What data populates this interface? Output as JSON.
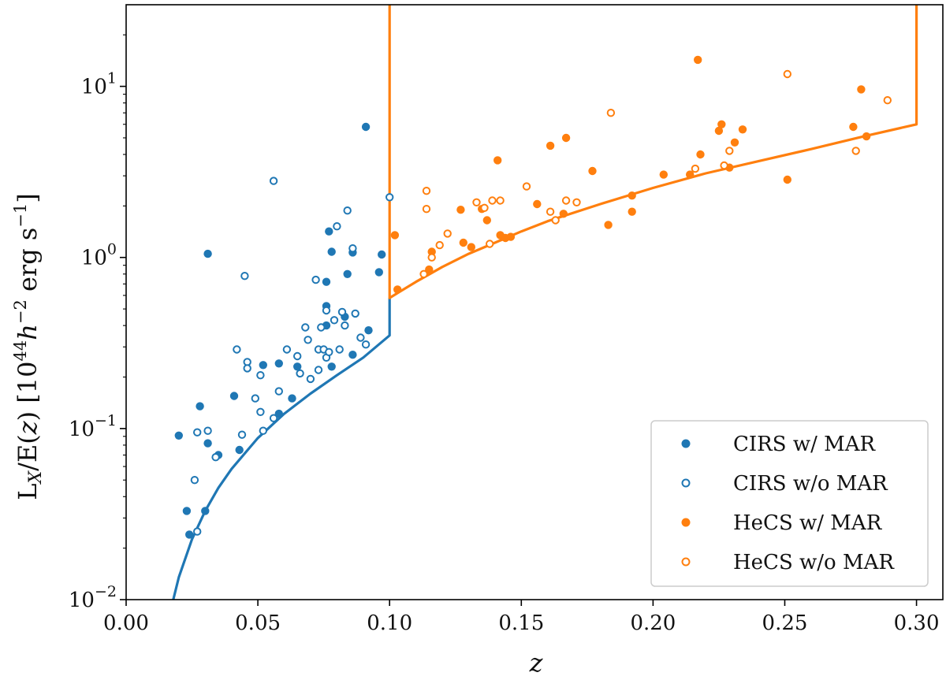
{
  "chart_data": {
    "type": "scatter",
    "title": "",
    "xlabel": "z",
    "ylabel_parts": {
      "L": "L",
      "X": "X",
      "mid": "/E(",
      "z": "z",
      "close": ") [10",
      "exp44": "44",
      "h": "h",
      "expm2": "−2",
      "erg": " erg s",
      "expm1": "−1",
      "end": "]"
    },
    "xlim": [
      0.0,
      0.31
    ],
    "ylim": [
      0.01,
      30
    ],
    "yscale": "log",
    "x_ticks": [
      0.0,
      0.05,
      0.1,
      0.15,
      0.2,
      0.25,
      0.3
    ],
    "x_tick_labels": [
      "0.00",
      "0.05",
      "0.10",
      "0.15",
      "0.20",
      "0.25",
      "0.30"
    ],
    "y_ticks": [
      0.01,
      0.1,
      1,
      10
    ],
    "y_tick_labels": [
      {
        "base": "10",
        "exp": "−2"
      },
      {
        "base": "10",
        "exp": "−1"
      },
      {
        "base": "10",
        "exp": "0"
      },
      {
        "base": "10",
        "exp": "1"
      }
    ],
    "colors": {
      "cirs": "#1f77b4",
      "hecs": "#ff7f0e"
    },
    "legend": {
      "position": "lower-right",
      "entries": [
        {
          "label": "CIRS w/ MAR",
          "color": "#1f77b4",
          "filled": true
        },
        {
          "label": "CIRS w/o MAR",
          "color": "#1f77b4",
          "filled": false
        },
        {
          "label": "HeCS w/ MAR",
          "color": "#ff7f0e",
          "filled": true
        },
        {
          "label": "HeCS w/o MAR",
          "color": "#ff7f0e",
          "filled": false
        }
      ]
    },
    "curves": [
      {
        "name": "CIRS limit",
        "color": "#1f77b4",
        "points": [
          [
            0.0179,
            0.01
          ],
          [
            0.02,
            0.0135
          ],
          [
            0.025,
            0.0225
          ],
          [
            0.03,
            0.033
          ],
          [
            0.035,
            0.045
          ],
          [
            0.04,
            0.058
          ],
          [
            0.05,
            0.088
          ],
          [
            0.06,
            0.122
          ],
          [
            0.07,
            0.16
          ],
          [
            0.08,
            0.205
          ],
          [
            0.09,
            0.26
          ],
          [
            0.1,
            0.35
          ],
          [
            0.1,
            0.58
          ]
        ]
      },
      {
        "name": "HeCS limit",
        "color": "#ff7f0e",
        "points": [
          [
            0.1,
            30
          ],
          [
            0.1,
            0.58
          ],
          [
            0.11,
            0.72
          ],
          [
            0.12,
            0.88
          ],
          [
            0.13,
            1.05
          ],
          [
            0.14,
            1.22
          ],
          [
            0.15,
            1.42
          ],
          [
            0.16,
            1.63
          ],
          [
            0.18,
            2.05
          ],
          [
            0.2,
            2.55
          ],
          [
            0.22,
            3.1
          ],
          [
            0.24,
            3.65
          ],
          [
            0.26,
            4.3
          ],
          [
            0.28,
            5.1
          ],
          [
            0.3,
            6.0
          ],
          [
            0.3,
            30
          ]
        ]
      }
    ],
    "series": [
      {
        "name": "CIRS w/ MAR",
        "color": "#1f77b4",
        "filled": true,
        "points": [
          [
            0.02,
            0.091
          ],
          [
            0.023,
            0.033
          ],
          [
            0.024,
            0.024
          ],
          [
            0.028,
            0.135
          ],
          [
            0.03,
            0.033
          ],
          [
            0.031,
            1.05
          ],
          [
            0.031,
            0.082
          ],
          [
            0.035,
            0.07
          ],
          [
            0.041,
            0.155
          ],
          [
            0.043,
            0.075
          ],
          [
            0.052,
            0.235
          ],
          [
            0.058,
            0.24
          ],
          [
            0.058,
            0.122
          ],
          [
            0.063,
            0.15
          ],
          [
            0.065,
            0.23
          ],
          [
            0.076,
            0.52
          ],
          [
            0.076,
            0.72
          ],
          [
            0.076,
            0.4
          ],
          [
            0.077,
            1.42
          ],
          [
            0.078,
            1.08
          ],
          [
            0.078,
            0.23
          ],
          [
            0.084,
            0.8
          ],
          [
            0.086,
            1.07
          ],
          [
            0.086,
            0.27
          ],
          [
            0.083,
            0.45
          ],
          [
            0.091,
            5.8
          ],
          [
            0.092,
            0.375
          ],
          [
            0.096,
            0.82
          ],
          [
            0.097,
            1.04
          ]
        ]
      },
      {
        "name": "CIRS w/o MAR",
        "color": "#1f77b4",
        "filled": false,
        "points": [
          [
            0.026,
            0.05
          ],
          [
            0.027,
            0.025
          ],
          [
            0.027,
            0.095
          ],
          [
            0.031,
            0.097
          ],
          [
            0.034,
            0.068
          ],
          [
            0.042,
            0.29
          ],
          [
            0.044,
            0.092
          ],
          [
            0.045,
            0.78
          ],
          [
            0.046,
            0.245
          ],
          [
            0.046,
            0.225
          ],
          [
            0.049,
            0.15
          ],
          [
            0.051,
            0.205
          ],
          [
            0.051,
            0.125
          ],
          [
            0.052,
            0.097
          ],
          [
            0.056,
            2.8
          ],
          [
            0.056,
            0.115
          ],
          [
            0.058,
            0.165
          ],
          [
            0.061,
            0.29
          ],
          [
            0.065,
            0.265
          ],
          [
            0.066,
            0.21
          ],
          [
            0.068,
            0.39
          ],
          [
            0.069,
            0.33
          ],
          [
            0.07,
            0.195
          ],
          [
            0.072,
            0.74
          ],
          [
            0.073,
            0.29
          ],
          [
            0.073,
            0.22
          ],
          [
            0.074,
            0.39
          ],
          [
            0.075,
            0.29
          ],
          [
            0.076,
            0.49
          ],
          [
            0.076,
            0.26
          ],
          [
            0.077,
            0.28
          ],
          [
            0.079,
            0.43
          ],
          [
            0.08,
            1.52
          ],
          [
            0.081,
            0.29
          ],
          [
            0.082,
            0.48
          ],
          [
            0.083,
            0.4
          ],
          [
            0.084,
            1.88
          ],
          [
            0.086,
            1.13
          ],
          [
            0.087,
            0.47
          ],
          [
            0.089,
            0.34
          ],
          [
            0.091,
            0.31
          ],
          [
            0.1,
            2.25
          ]
        ]
      },
      {
        "name": "HeCS w/ MAR",
        "color": "#ff7f0e",
        "filled": true,
        "points": [
          [
            0.102,
            1.35
          ],
          [
            0.103,
            0.65
          ],
          [
            0.115,
            0.85
          ],
          [
            0.116,
            1.08
          ],
          [
            0.127,
            1.9
          ],
          [
            0.128,
            1.22
          ],
          [
            0.131,
            1.15
          ],
          [
            0.135,
            1.92
          ],
          [
            0.137,
            1.65
          ],
          [
            0.141,
            3.7
          ],
          [
            0.142,
            1.35
          ],
          [
            0.144,
            1.3
          ],
          [
            0.146,
            1.32
          ],
          [
            0.156,
            2.05
          ],
          [
            0.161,
            4.5
          ],
          [
            0.166,
            1.8
          ],
          [
            0.167,
            5.0
          ],
          [
            0.177,
            3.2
          ],
          [
            0.183,
            1.55
          ],
          [
            0.192,
            2.3
          ],
          [
            0.192,
            1.85
          ],
          [
            0.204,
            3.05
          ],
          [
            0.214,
            3.05
          ],
          [
            0.217,
            14.3
          ],
          [
            0.218,
            4.0
          ],
          [
            0.225,
            5.5
          ],
          [
            0.226,
            6.0
          ],
          [
            0.229,
            3.35
          ],
          [
            0.231,
            4.7
          ],
          [
            0.234,
            5.6
          ],
          [
            0.251,
            2.85
          ],
          [
            0.276,
            5.8
          ],
          [
            0.279,
            9.6
          ],
          [
            0.281,
            5.1
          ]
        ]
      },
      {
        "name": "HeCS w/o MAR",
        "color": "#ff7f0e",
        "filled": false,
        "points": [
          [
            0.113,
            0.8
          ],
          [
            0.114,
            1.92
          ],
          [
            0.114,
            2.45
          ],
          [
            0.116,
            1.0
          ],
          [
            0.119,
            1.18
          ],
          [
            0.122,
            1.38
          ],
          [
            0.133,
            2.1
          ],
          [
            0.136,
            1.95
          ],
          [
            0.138,
            1.2
          ],
          [
            0.139,
            2.15
          ],
          [
            0.142,
            2.15
          ],
          [
            0.152,
            2.6
          ],
          [
            0.161,
            1.85
          ],
          [
            0.163,
            1.65
          ],
          [
            0.167,
            2.15
          ],
          [
            0.171,
            2.1
          ],
          [
            0.184,
            7.0
          ],
          [
            0.216,
            3.3
          ],
          [
            0.227,
            3.45
          ],
          [
            0.229,
            4.2
          ],
          [
            0.251,
            11.8
          ],
          [
            0.277,
            4.2
          ],
          [
            0.289,
            8.3
          ]
        ]
      }
    ]
  }
}
